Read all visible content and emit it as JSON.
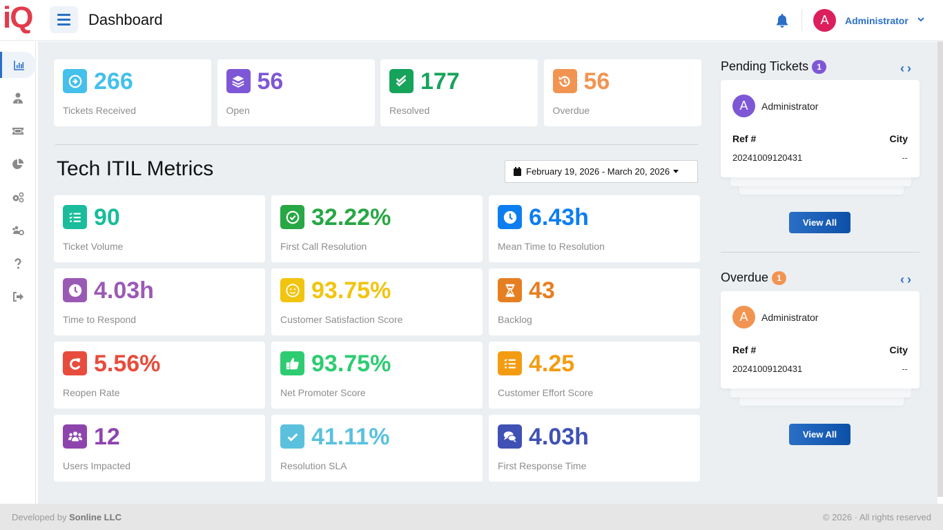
{
  "header": {
    "logo": "iQ",
    "title": "Dashboard",
    "user": {
      "initial": "A",
      "name": "Administrator"
    }
  },
  "sidebar": {
    "items": [
      {
        "icon": "chart-bar-icon",
        "active": true
      },
      {
        "icon": "user-tie-icon"
      },
      {
        "icon": "ticket-icon"
      },
      {
        "icon": "pie-chart-icon"
      },
      {
        "icon": "cogs-icon"
      },
      {
        "icon": "users-cog-icon"
      },
      {
        "icon": "question-icon"
      },
      {
        "icon": "sign-out-icon"
      }
    ]
  },
  "summary": [
    {
      "value": "266",
      "label": "Tickets Received",
      "color": "#44c0ea",
      "icon": "arrow-circle-right-icon"
    },
    {
      "value": "56",
      "label": "Open",
      "color": "#7e57d6",
      "icon": "layers-icon"
    },
    {
      "value": "177",
      "label": "Resolved",
      "color": "#16a35a",
      "icon": "double-check-icon"
    },
    {
      "value": "56",
      "label": "Overdue",
      "color": "#f29451",
      "icon": "history-icon"
    }
  ],
  "metrics": {
    "title": "Tech ITIL Metrics",
    "date_range": "February 19, 2026 - March 20, 2026",
    "items": [
      {
        "value": "90",
        "label": "Ticket Volume",
        "color": "#1abc9c",
        "icon": "tasks-icon"
      },
      {
        "value": "32.22%",
        "label": "First Call Resolution",
        "color": "#28a745",
        "icon": "check-circle-icon"
      },
      {
        "value": "6.43h",
        "label": "Mean Time to Resolution",
        "color": "#0d7ef0",
        "icon": "clock-icon"
      },
      {
        "value": "4.03h",
        "label": "Time to Respond",
        "color": "#9b59b6",
        "icon": "clock-icon"
      },
      {
        "value": "93.75%",
        "label": "Customer Satisfaction Score",
        "color": "#f1c40f",
        "icon": "smile-icon"
      },
      {
        "value": "43",
        "label": "Backlog",
        "color": "#e67e22",
        "icon": "hourglass-icon"
      },
      {
        "value": "5.56%",
        "label": "Reopen Rate",
        "color": "#e74c3c",
        "icon": "redo-icon"
      },
      {
        "value": "93.75%",
        "label": "Net Promoter Score",
        "color": "#2ecc71",
        "icon": "thumbs-up-icon"
      },
      {
        "value": "4.25",
        "label": "Customer Effort Score",
        "color": "#f39c12",
        "icon": "tasks-icon"
      },
      {
        "value": "12",
        "label": "Users Impacted",
        "color": "#8e44ad",
        "icon": "users-icon"
      },
      {
        "value": "41.11%",
        "label": "Resolution SLA",
        "color": "#5bc0de",
        "icon": "check-square-icon"
      },
      {
        "value": "4.03h",
        "label": "First Response Time",
        "color": "#3f51b5",
        "icon": "comments-icon"
      }
    ]
  },
  "pending": {
    "title": "Pending Tickets",
    "count": "1",
    "badge_color": "#7e57d6",
    "ticket": {
      "initial": "A",
      "name": "Administrator",
      "ref_label": "Ref #",
      "city_label": "City",
      "ref": "20241009120431",
      "city": "--"
    },
    "button": "View All"
  },
  "overdue": {
    "title": "Overdue",
    "count": "1",
    "badge_color": "#f29451",
    "ticket": {
      "initial": "A",
      "name": "Administrator",
      "ref_label": "Ref #",
      "city_label": "City",
      "ref": "20241009120431",
      "city": "--"
    },
    "button": "View All"
  },
  "footer": {
    "developed_by": "Developed by",
    "company": "Sonline LLC",
    "copyright": "© 2026 · All rights reserved"
  }
}
